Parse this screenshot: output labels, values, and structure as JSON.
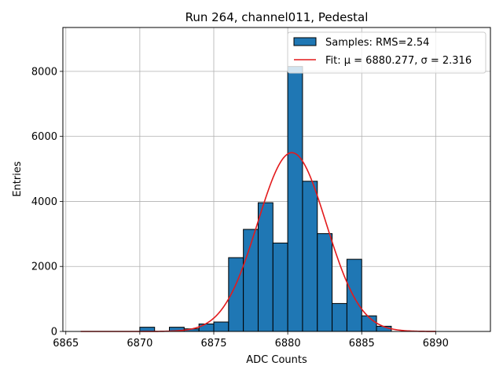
{
  "chart_data": {
    "type": "bar",
    "title": "Run 264, channel011, Pedestal",
    "xlabel": "ADC Counts",
    "ylabel": "Entries",
    "xlim": [
      6864.8,
      6893.7
    ],
    "ylim": [
      0,
      9350
    ],
    "xticks": [
      6865,
      6870,
      6875,
      6880,
      6885,
      6890
    ],
    "yticks": [
      0,
      2000,
      4000,
      6000,
      8000
    ],
    "grid": true,
    "legend_position": "top-right",
    "colors": {
      "bars": "#1f77b4",
      "fit": "#e31a1c",
      "edge": "#000000"
    },
    "bin_width": 1,
    "bin_starts": [
      6870,
      6872,
      6873,
      6874,
      6875,
      6876,
      6877,
      6878,
      6879,
      6880,
      6881,
      6882,
      6883,
      6884,
      6885,
      6886
    ],
    "bin_values": [
      130,
      130,
      80,
      230,
      290,
      2270,
      3140,
      3960,
      2720,
      8150,
      4620,
      3010,
      860,
      2220,
      480,
      160
    ],
    "fit": {
      "mu": 6880.277,
      "sigma": 2.316,
      "peak": 5500,
      "x_start": 6866,
      "x_end": 6890
    },
    "legend": [
      {
        "kind": "patch",
        "label": "Samples: RMS=2.54"
      },
      {
        "kind": "line",
        "label": "Fit: μ = 6880.277, σ = 2.316"
      }
    ]
  }
}
